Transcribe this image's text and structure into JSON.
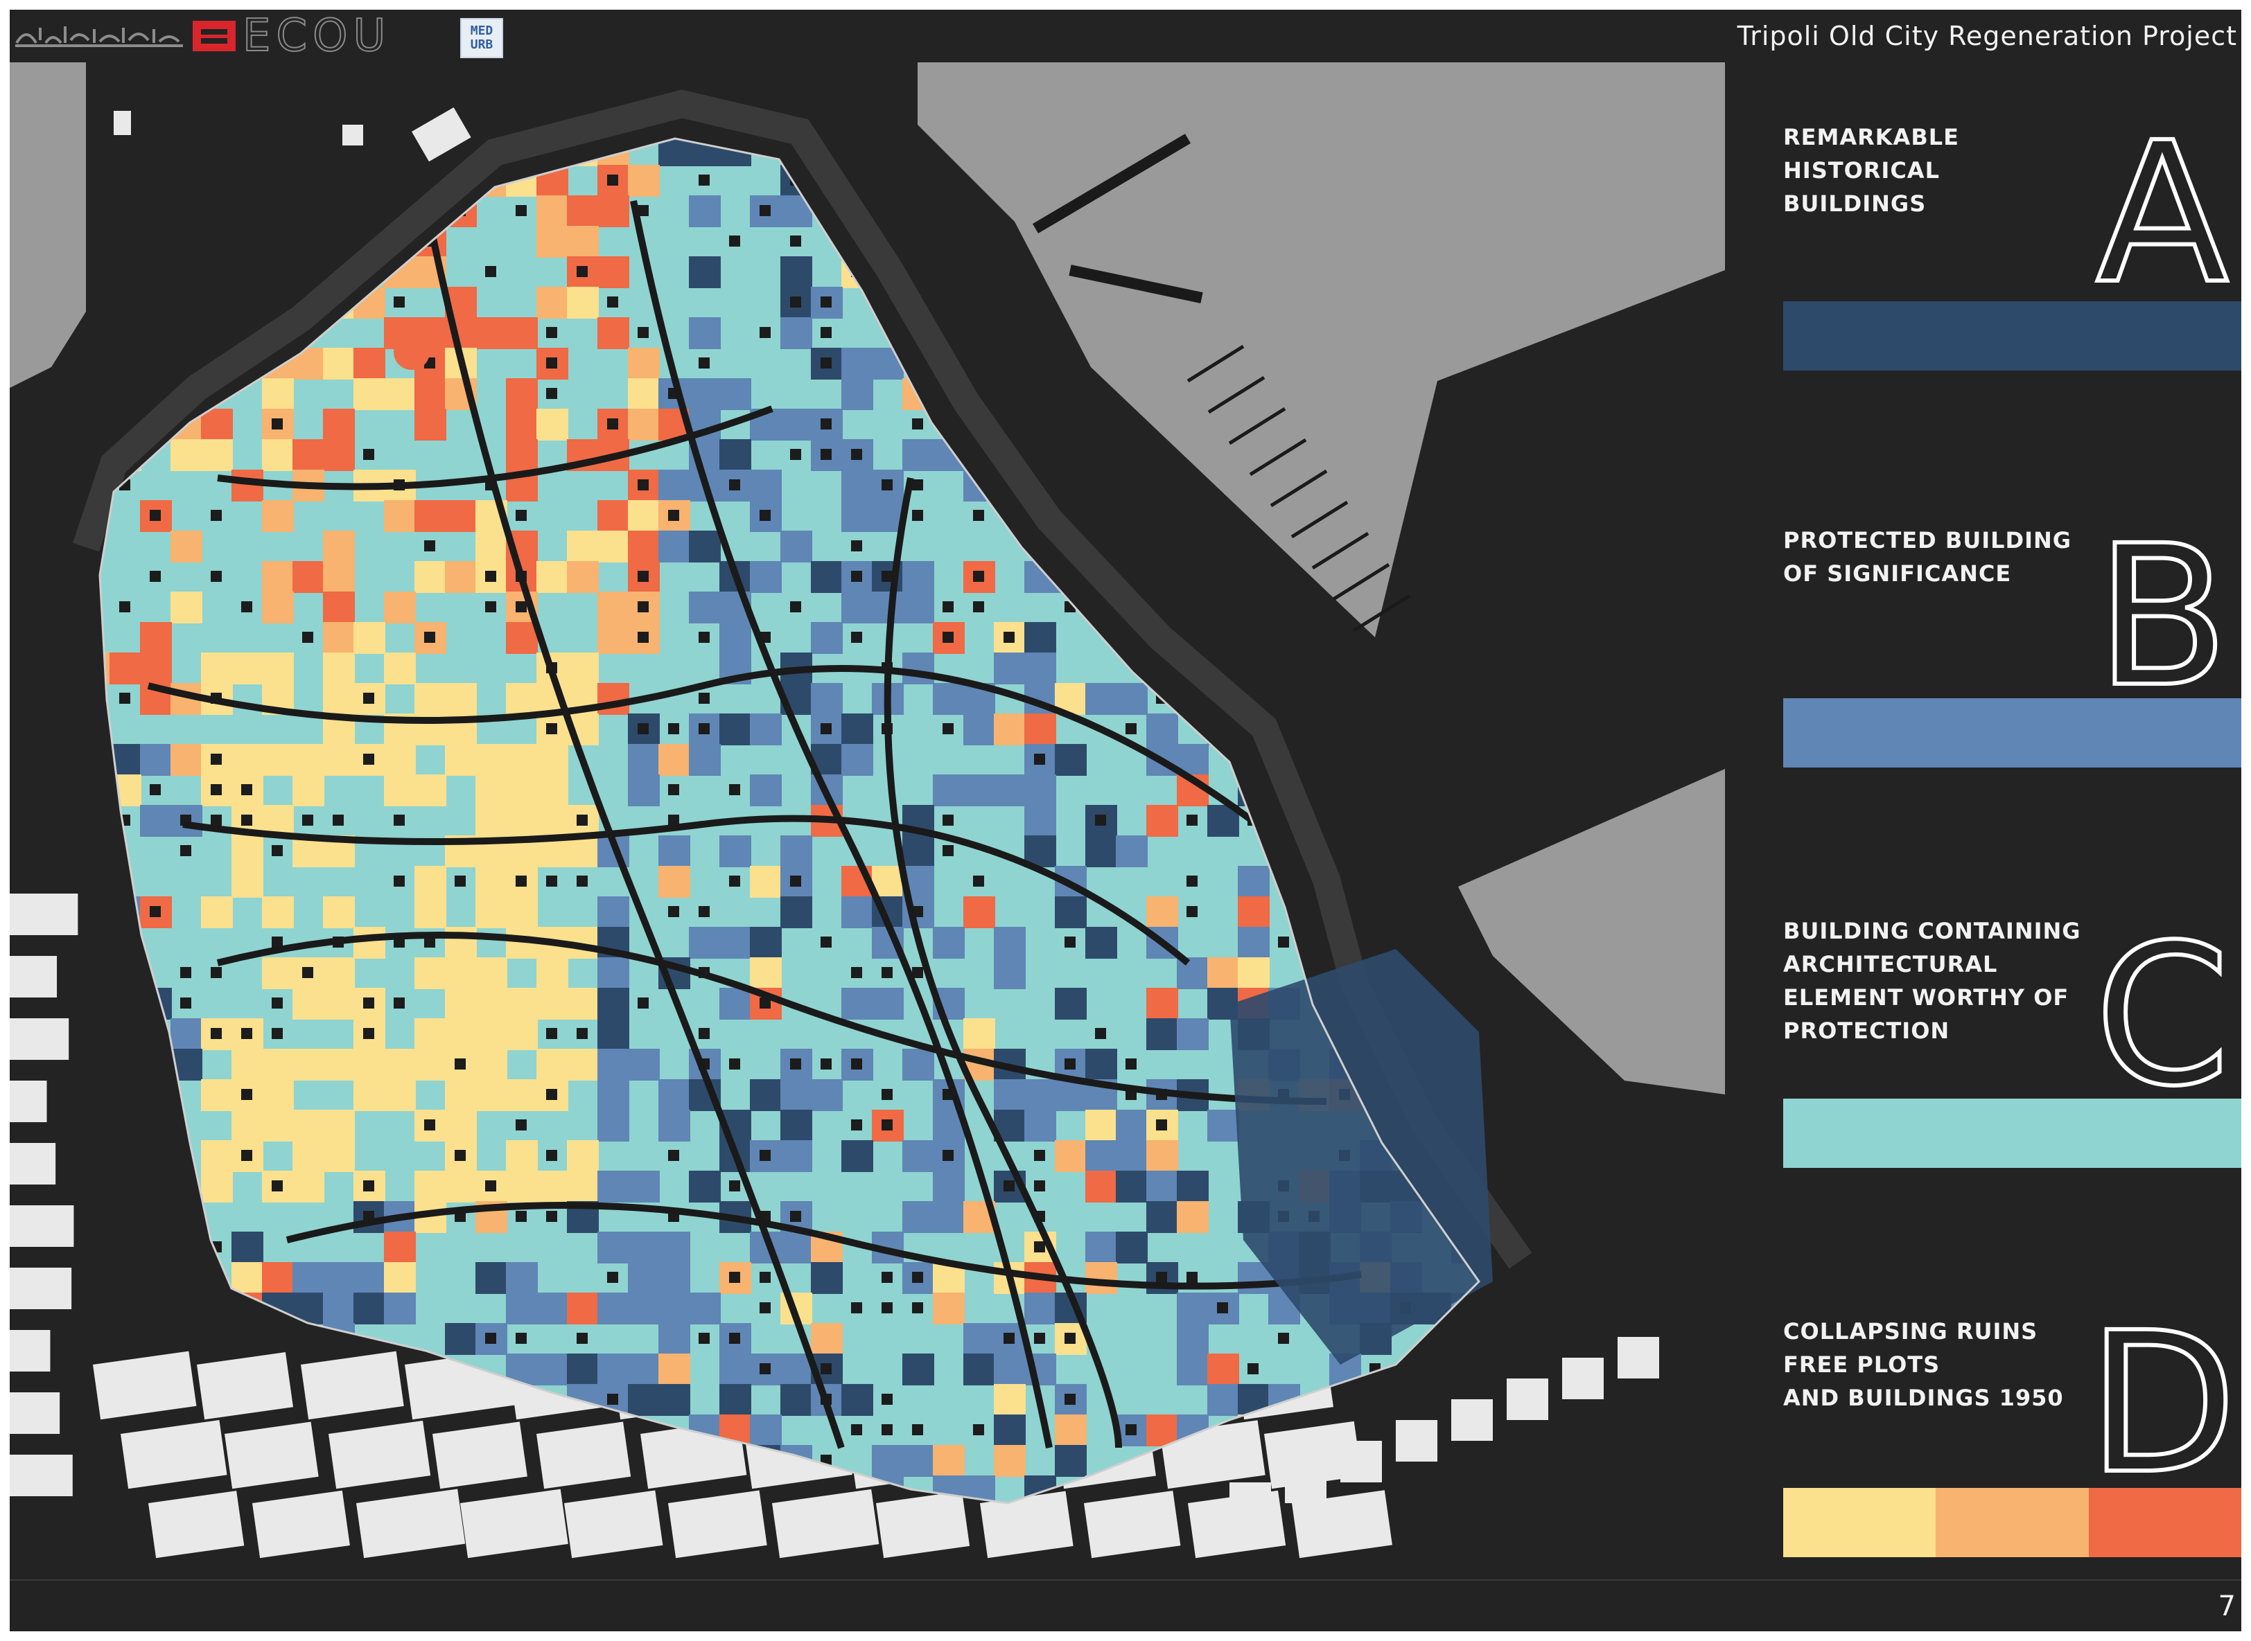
{
  "header": {
    "logo_arabic": "الكوابيل التنظيمي لبلدية طرابلس",
    "ecou_text": "ECOU",
    "medurb_lines": [
      "MED",
      "URB"
    ],
    "project_title": "Tripoli Old City Regeneration Project"
  },
  "legend": {
    "items": [
      {
        "letter": "A",
        "label": "REMARKABLE\nHISTORICAL\nBUILDINGS",
        "colors": [
          "#2e4a6b"
        ]
      },
      {
        "letter": "B",
        "label": "PROTECTED BUILDING\nOF SIGNIFICANCE",
        "colors": [
          "#5f86b5"
        ]
      },
      {
        "letter": "C",
        "label": "BUILDING CONTAINING\nARCHITECTURAL\nELEMENT WORTHY OF\nPROTECTION",
        "colors": [
          "#8fd4d0"
        ]
      },
      {
        "letter": "D",
        "label": "COLLAPSING RUINS\nFREE PLOTS\nAND BUILDINGS 1950",
        "colors": [
          "#fbe08e",
          "#f7b36f",
          "#ef6a45"
        ]
      }
    ]
  },
  "map": {
    "colors": {
      "background": "#232323",
      "sea": "#9a9a9a",
      "modern_blocks": "#e9e9e9",
      "A": "#2e4a6b",
      "B": "#5f86b5",
      "C": "#8fd4d0",
      "D1": "#fbe08e",
      "D2": "#f7b36f",
      "D3": "#ef6a45",
      "streets": "#1a1a1a"
    }
  },
  "footer": {
    "page_number": "7"
  }
}
